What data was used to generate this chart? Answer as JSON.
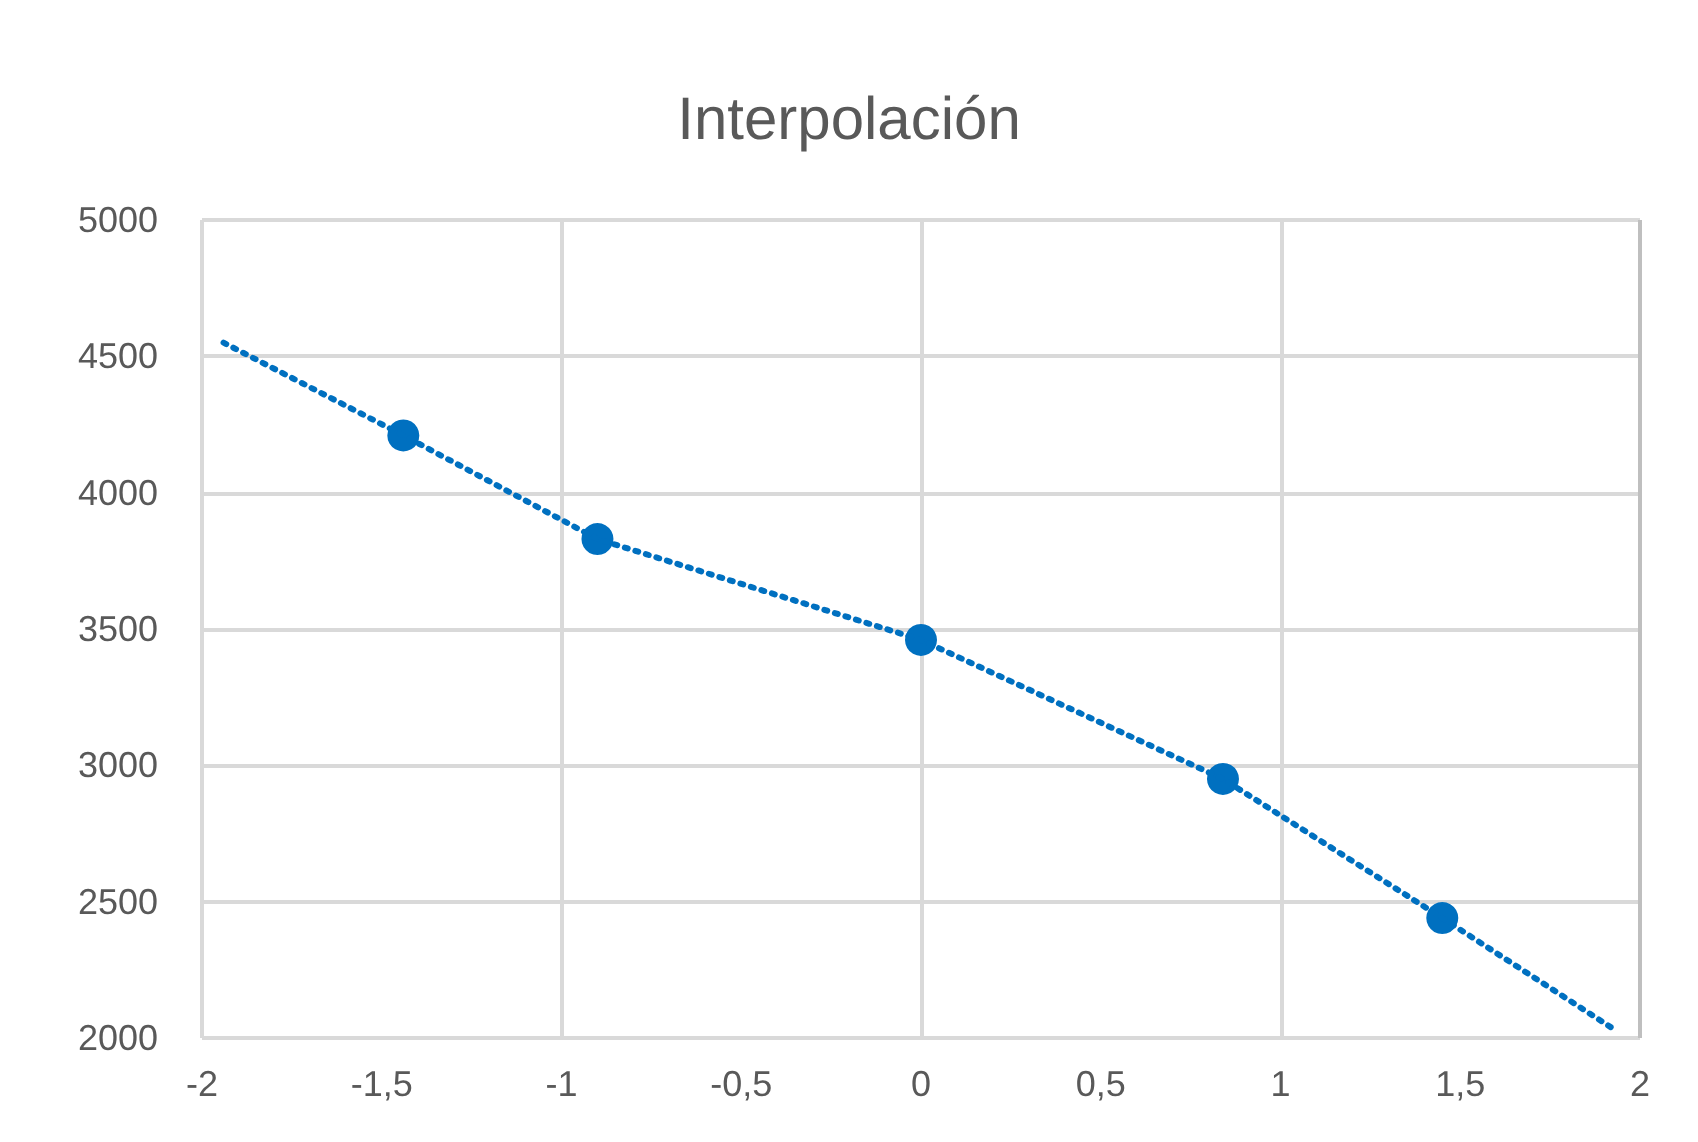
{
  "chart_data": {
    "type": "scatter",
    "title": "Interpolación",
    "series": [
      {
        "color": "#0070c0",
        "x": [
          -1.44,
          -0.9,
          0,
          0.84,
          1.45
        ],
        "values": [
          4210,
          3830,
          3460,
          2950,
          2440
        ],
        "marker": "circle"
      },
      {
        "type": "line",
        "color": "#0070c0",
        "x": [
          -1.94,
          -1.44,
          -0.9,
          0,
          0.84,
          1.45,
          1.93
        ],
        "values": [
          4550,
          4210,
          3830,
          3460,
          2950,
          2440,
          2030
        ],
        "line_style": "dotted",
        "marker": "none"
      }
    ],
    "xlim": [
      -2,
      2
    ],
    "xticks": [
      -2,
      {
        "value": -1.5,
        "label": "-1,5"
      },
      -1,
      {
        "value": -0.5,
        "label": "-0,5"
      },
      0,
      {
        "value": 0.5,
        "label": "0,5"
      },
      1,
      {
        "value": 1.5,
        "label": "1,5"
      },
      2
    ],
    "ylim": [
      2000,
      5000
    ],
    "yticks": [
      2000,
      2500,
      3000,
      3500,
      4000,
      4500,
      5000
    ],
    "grid": true
  }
}
